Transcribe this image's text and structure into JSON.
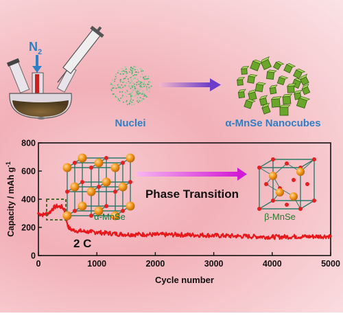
{
  "top": {
    "gas_label_main": "N",
    "gas_label_sub": "2",
    "nuclei_label": "Nuclei",
    "product_label": "α-MnSe Nanocubes",
    "arrow_color": "#6a3cc9",
    "label_color": "#2e7fc4"
  },
  "chart_data": {
    "type": "line",
    "ylabel_main": "Capacity / mAh g",
    "ylabel_sup": "-1",
    "xlabel": "Cycle number",
    "xlim": [
      0,
      5000
    ],
    "ylim": [
      0,
      800
    ],
    "x_ticks": [
      "0",
      "1000",
      "2000",
      "3000",
      "4000",
      "5000"
    ],
    "y_ticks": [
      "0",
      "200",
      "400",
      "600",
      "800"
    ],
    "rate_label": "2 C",
    "series_color": "#e8171a",
    "x": [
      0,
      40,
      80,
      120,
      160,
      200,
      240,
      280,
      320,
      360,
      400,
      440,
      480,
      520,
      560,
      600,
      700,
      800,
      900,
      1000,
      1200,
      1400,
      1600,
      1800,
      2000,
      2200,
      2400,
      2600,
      2800,
      3000,
      3200,
      3400,
      3600,
      3800,
      4000,
      4200,
      4400,
      4600,
      4800,
      5000
    ],
    "y": [
      300,
      292,
      290,
      295,
      300,
      310,
      330,
      345,
      350,
      348,
      345,
      330,
      250,
      195,
      185,
      180,
      175,
      170,
      168,
      165,
      158,
      152,
      150,
      150,
      148,
      148,
      148,
      146,
      146,
      142,
      140,
      138,
      136,
      134,
      132,
      133,
      135,
      134,
      136,
      138
    ],
    "noise_band": 16
  },
  "annotation": {
    "phase_label": "Phase Transition",
    "alpha_label": "α-MnSe",
    "beta_label": "β-MnSe",
    "alpha_color": "#0e7a3c",
    "beta_color": "#2a7a30",
    "box_color": "#4a6a2a"
  }
}
